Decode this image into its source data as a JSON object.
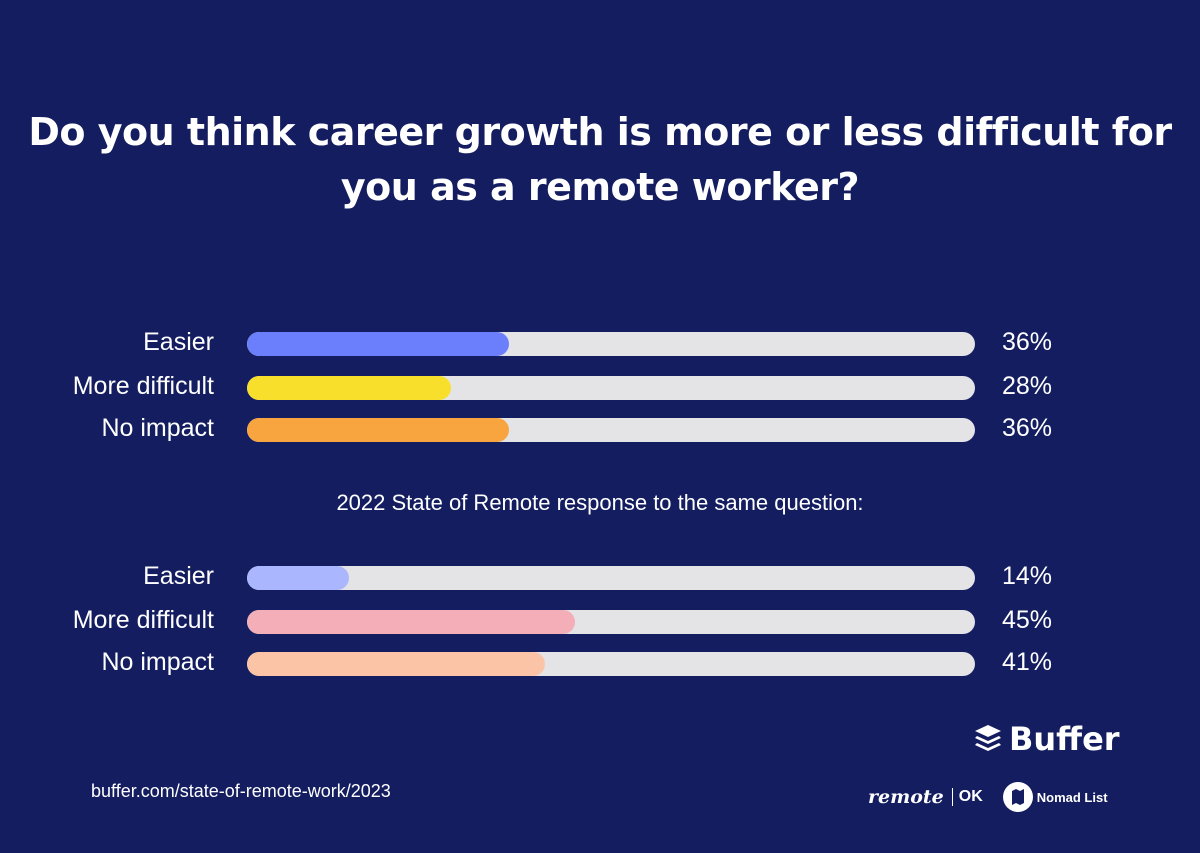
{
  "chart_data": [
    {
      "type": "bar",
      "orientation": "horizontal",
      "title": "Do you think career growth is more or less difficult for you as a remote worker?",
      "categories": [
        "Easier",
        "More difficult",
        "No impact"
      ],
      "values": [
        36,
        28,
        36
      ],
      "value_labels": [
        "36%",
        "28%",
        "36%"
      ],
      "colors": [
        "#6b7ffc",
        "#f8df2b",
        "#f8a53f"
      ],
      "track_color": "#e4e4e6",
      "xlim": [
        0,
        100
      ]
    },
    {
      "type": "bar",
      "orientation": "horizontal",
      "title": "2022 State of Remote response to the same question:",
      "categories": [
        "Easier",
        "More difficult",
        "No impact"
      ],
      "values": [
        14,
        45,
        41
      ],
      "value_labels": [
        "14%",
        "45%",
        "41%"
      ],
      "colors": [
        "#aab6fd",
        "#f3aeb8",
        "#fcc4a6"
      ],
      "track_color": "#e4e4e6",
      "xlim": [
        0,
        100
      ]
    }
  ],
  "background_color": "#131d5f",
  "footer": {
    "url": "buffer.com/state-of-remote-work/2023",
    "brand": "Buffer",
    "partner1": "remote",
    "partner1b": "OK",
    "partner2": "Nomad List"
  }
}
